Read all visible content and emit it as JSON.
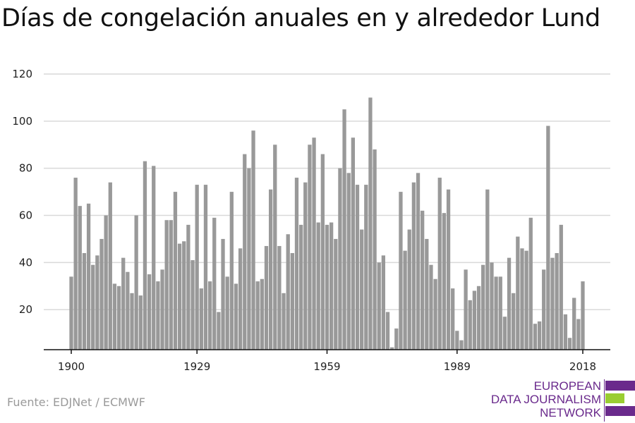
{
  "title": "Días de congelación anuales en y alrededor Lund",
  "source": "Fuente: EDJNet / ECMWF",
  "logo": {
    "lines": [
      "EUROPEAN",
      "DATA JOURNALISM",
      "NETWORK"
    ],
    "colors": {
      "purple": "#6a2a8c",
      "green": "#9acd32"
    }
  },
  "colors": {
    "bar": "#999999",
    "grid": "#d9d9d9",
    "axis": "#111111"
  },
  "chart_data": {
    "type": "bar",
    "title": "Días de congelación anuales en y alrededor Lund",
    "xlabel": "",
    "ylabel": "",
    "grid": true,
    "ylim": [
      3,
      120
    ],
    "yticks": [
      20,
      40,
      60,
      80,
      100,
      120
    ],
    "xticks": [
      1900,
      1929,
      1959,
      1989,
      2018
    ],
    "x": [
      1900,
      1901,
      1902,
      1903,
      1904,
      1905,
      1906,
      1907,
      1908,
      1909,
      1910,
      1911,
      1912,
      1913,
      1914,
      1915,
      1916,
      1917,
      1918,
      1919,
      1920,
      1921,
      1922,
      1923,
      1924,
      1925,
      1926,
      1927,
      1928,
      1929,
      1930,
      1931,
      1932,
      1933,
      1934,
      1935,
      1936,
      1937,
      1938,
      1939,
      1940,
      1941,
      1942,
      1943,
      1944,
      1945,
      1946,
      1947,
      1948,
      1949,
      1950,
      1951,
      1952,
      1953,
      1954,
      1955,
      1956,
      1957,
      1958,
      1959,
      1960,
      1961,
      1962,
      1963,
      1964,
      1965,
      1966,
      1967,
      1968,
      1969,
      1970,
      1971,
      1972,
      1973,
      1974,
      1975,
      1976,
      1977,
      1978,
      1979,
      1980,
      1981,
      1982,
      1983,
      1984,
      1985,
      1986,
      1987,
      1988,
      1989,
      1990,
      1991,
      1992,
      1993,
      1994,
      1995,
      1996,
      1997,
      1998,
      1999,
      2000,
      2001,
      2002,
      2003,
      2004,
      2005,
      2006,
      2007,
      2008,
      2009,
      2010,
      2011,
      2012,
      2013,
      2014,
      2015,
      2016,
      2017,
      2018
    ],
    "values": [
      34,
      76,
      64,
      44,
      65,
      39,
      43,
      50,
      60,
      74,
      31,
      30,
      42,
      36,
      27,
      60,
      26,
      83,
      35,
      81,
      32,
      37,
      58,
      58,
      70,
      48,
      49,
      56,
      41,
      73,
      29,
      73,
      32,
      59,
      19,
      50,
      34,
      70,
      31,
      46,
      86,
      80,
      96,
      32,
      33,
      47,
      71,
      90,
      47,
      27,
      52,
      44,
      76,
      56,
      74,
      90,
      93,
      57,
      86,
      56,
      57,
      50,
      80,
      105,
      78,
      93,
      73,
      54,
      73,
      110,
      88,
      40,
      43,
      19,
      4,
      12,
      70,
      45,
      54,
      74,
      78,
      62,
      50,
      39,
      33,
      76,
      61,
      71,
      29,
      11,
      7,
      37,
      24,
      28,
      30,
      39,
      71,
      40,
      34,
      34,
      17,
      42,
      27,
      51,
      46,
      45,
      59,
      14,
      15,
      37,
      98,
      42,
      44,
      56,
      18,
      8,
      25,
      16,
      32
    ]
  }
}
